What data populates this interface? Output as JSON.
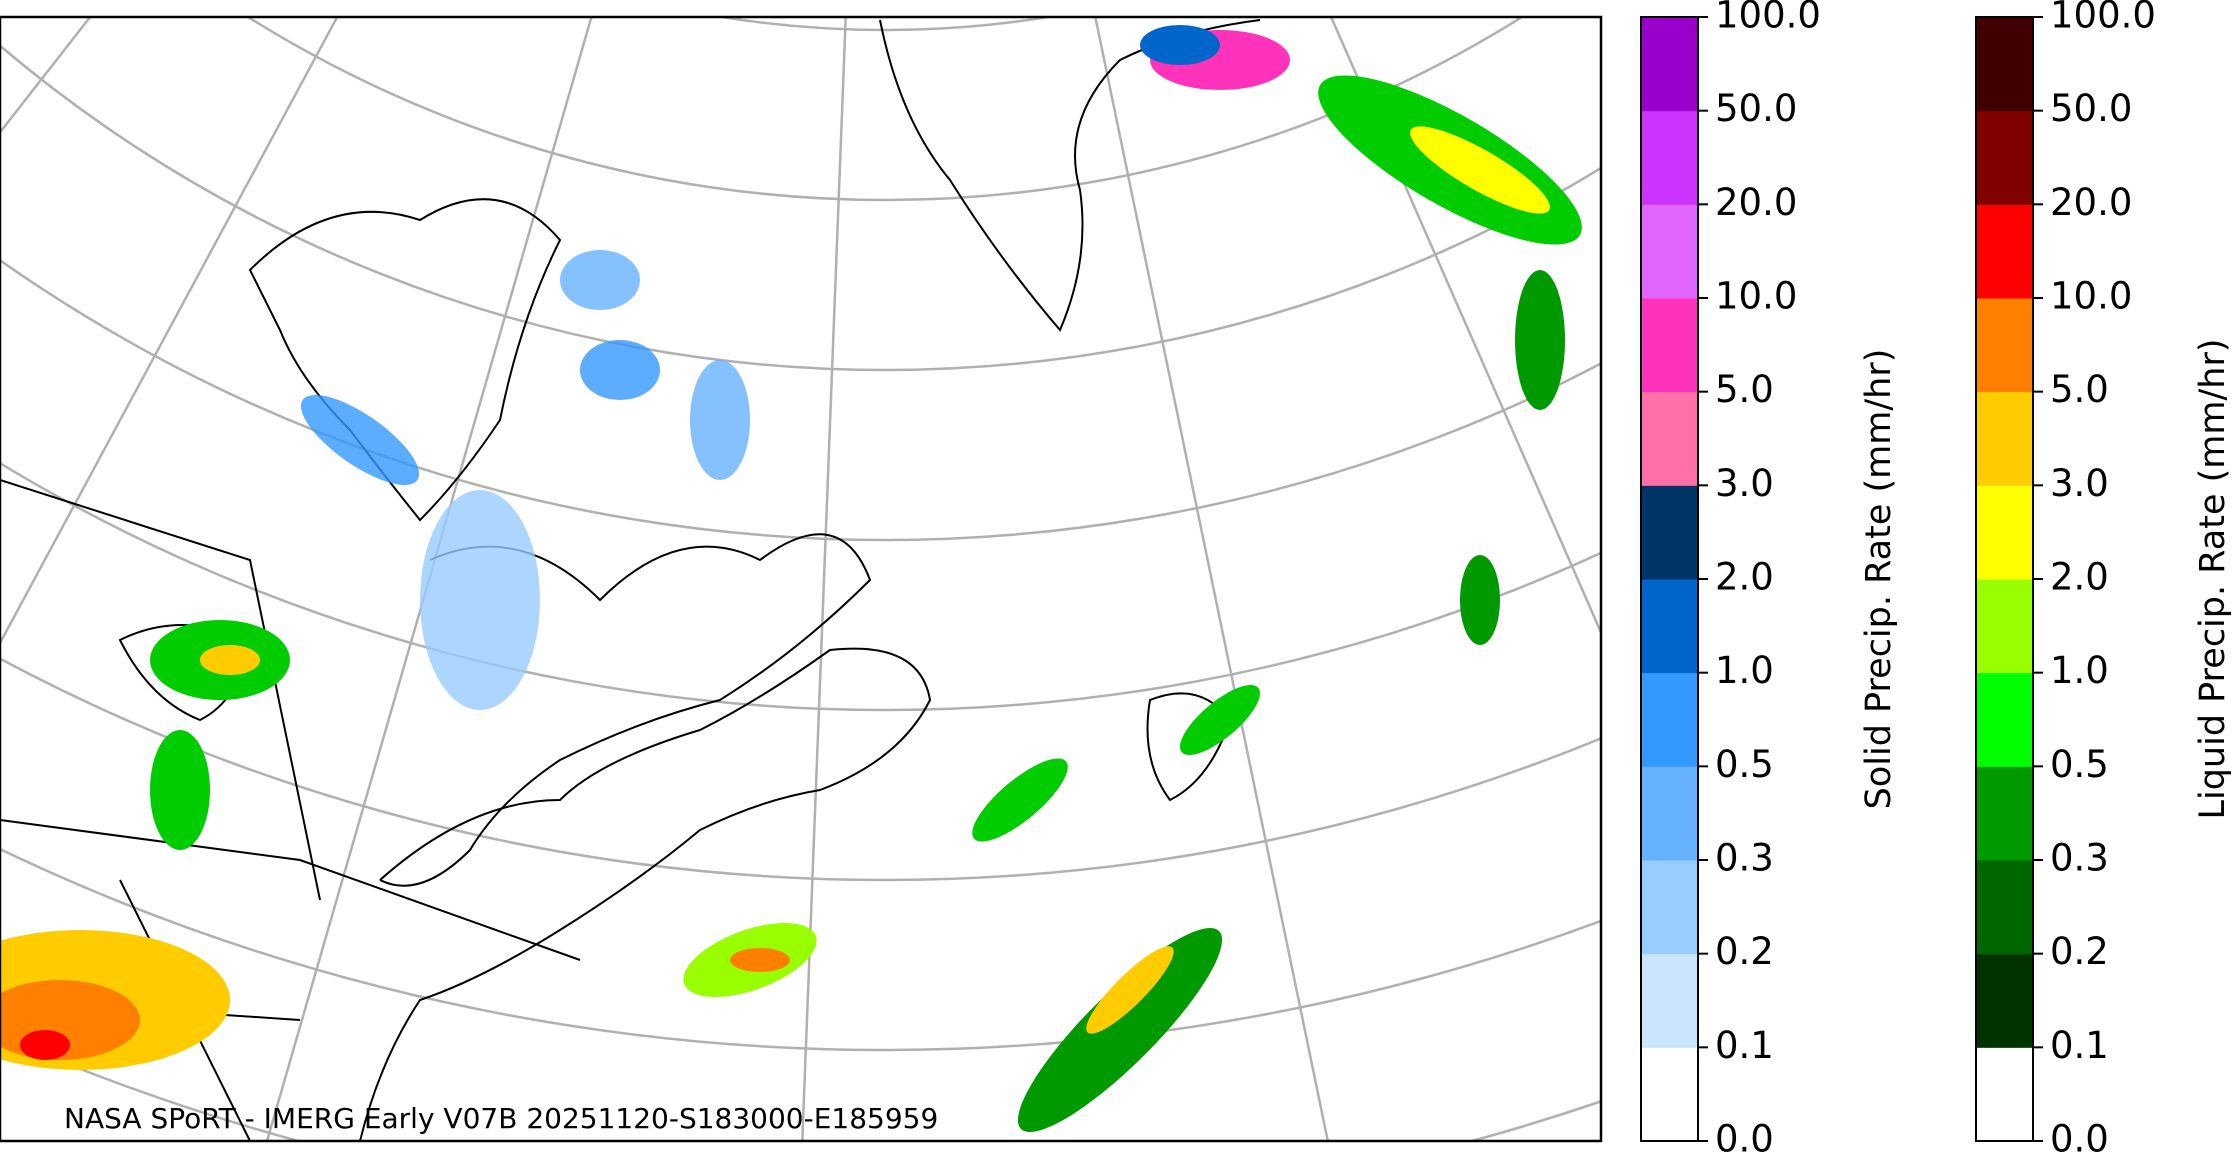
{
  "map": {
    "caption": "NASA SPoRT - IMERG Early V07B 20251120-S183000-E185959"
  },
  "colorbars": [
    {
      "label": "Solid Precip. Rate (mm/hr)",
      "ticks": [
        "0.0",
        "0.1",
        "0.2",
        "0.3",
        "0.5",
        "1.0",
        "2.0",
        "3.0",
        "5.0",
        "10.0",
        "20.0",
        "50.0",
        "100.0"
      ],
      "colors": [
        "#ffffff",
        "#cce5ff",
        "#99ccff",
        "#66b2ff",
        "#3399ff",
        "#0066cc",
        "#003366",
        "#ff6fa8",
        "#ff33bb",
        "#e066ff",
        "#cc33ff",
        "#9900cc"
      ]
    },
    {
      "label": "Liquid Precip. Rate (mm/hr)",
      "ticks": [
        "0.0",
        "0.1",
        "0.2",
        "0.3",
        "0.5",
        "1.0",
        "2.0",
        "3.0",
        "5.0",
        "10.0",
        "20.0",
        "50.0",
        "100.0"
      ],
      "colors": [
        "#ffffff",
        "#003300",
        "#006600",
        "#009900",
        "#00ff00",
        "#99ff00",
        "#ffff00",
        "#ffcc00",
        "#ff8000",
        "#ff0000",
        "#800000",
        "#400000"
      ]
    }
  ]
}
